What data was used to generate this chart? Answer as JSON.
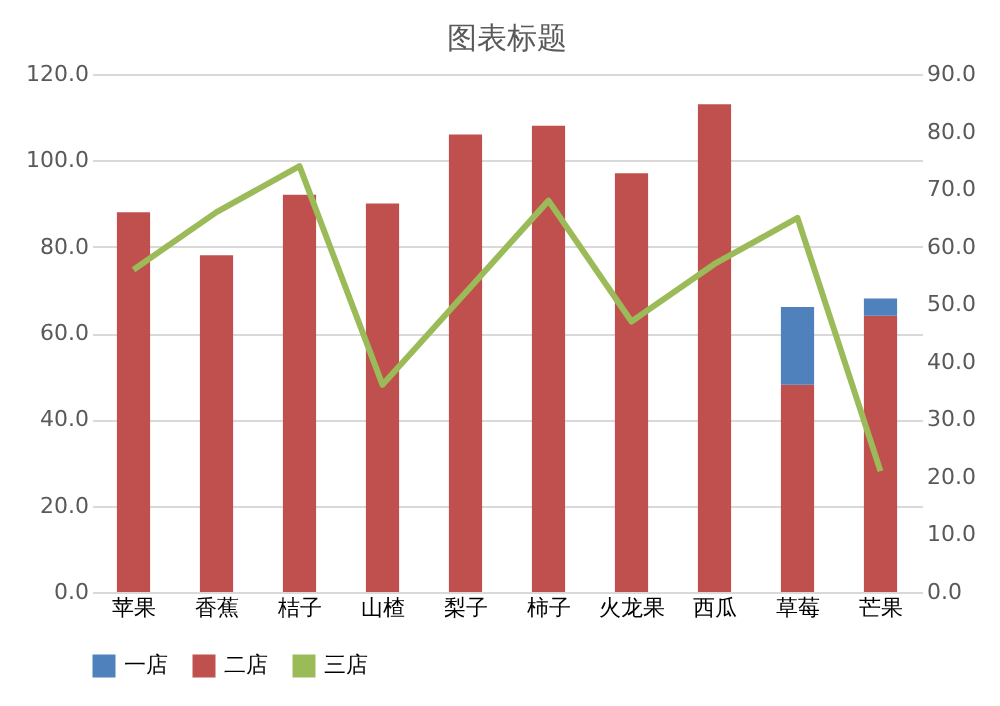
{
  "chart_data": {
    "type": "bar",
    "title": "图表标题",
    "stacked": true,
    "categories": [
      "苹果",
      "香蕉",
      "桔子",
      "山楂",
      "梨子",
      "柿子",
      "火龙果",
      "西瓜",
      "草莓",
      "芒果"
    ],
    "series": [
      {
        "name": "二店",
        "color": "#c0504d",
        "values": [
          88,
          78,
          92,
          90,
          106,
          108,
          97,
          113,
          48,
          64
        ]
      },
      {
        "name": "一店",
        "color": "#4f81bd",
        "values": [
          0,
          0,
          0,
          0,
          0,
          0,
          0,
          0,
          18,
          4
        ]
      },
      {
        "name": "三店",
        "type": "line",
        "axis": "y2",
        "color": "#9bbb59",
        "values": [
          56,
          66,
          74,
          36,
          52,
          68,
          47,
          57,
          65,
          21
        ]
      }
    ],
    "ylim": [
      0,
      120
    ],
    "yticks": [
      {
        "value": 0,
        "label": "0.0"
      },
      {
        "value": 20,
        "label": "20.0"
      },
      {
        "value": 40,
        "label": "40.0"
      },
      {
        "value": 60,
        "label": "60.0"
      },
      {
        "value": 80,
        "label": "80.0"
      },
      {
        "value": 100,
        "label": "100.0"
      },
      {
        "value": 120,
        "label": "120.0"
      }
    ],
    "y2lim": [
      0,
      90
    ],
    "y2ticks": [
      {
        "value": 0,
        "label": "0.0"
      },
      {
        "value": 10,
        "label": "10.0"
      },
      {
        "value": 20,
        "label": "20.0"
      },
      {
        "value": 30,
        "label": "30.0"
      },
      {
        "value": 40,
        "label": "40.0"
      },
      {
        "value": 50,
        "label": "50.0"
      },
      {
        "value": 60,
        "label": "60.0"
      },
      {
        "value": 70,
        "label": "70.0"
      },
      {
        "value": 80,
        "label": "80.0"
      },
      {
        "value": 90,
        "label": "90.0"
      }
    ],
    "grid": "y",
    "legend": "bottom"
  }
}
